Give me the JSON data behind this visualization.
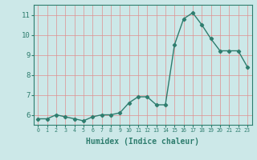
{
  "x": [
    0,
    1,
    2,
    3,
    4,
    5,
    6,
    7,
    8,
    9,
    10,
    11,
    12,
    13,
    14,
    15,
    16,
    17,
    18,
    19,
    20,
    21,
    22,
    23
  ],
  "y": [
    5.8,
    5.8,
    6.0,
    5.9,
    5.8,
    5.7,
    5.9,
    6.0,
    6.0,
    6.1,
    6.6,
    6.9,
    6.9,
    6.5,
    6.5,
    9.5,
    10.8,
    11.1,
    10.5,
    9.8,
    9.2,
    9.2,
    9.2,
    8.4
  ],
  "xlabel": "Humidex (Indice chaleur)",
  "xlim": [
    -0.5,
    23.5
  ],
  "ylim": [
    5.5,
    11.5
  ],
  "yticks": [
    6,
    7,
    8,
    9,
    10,
    11
  ],
  "xticks": [
    0,
    1,
    2,
    3,
    4,
    5,
    6,
    7,
    8,
    9,
    10,
    11,
    12,
    13,
    14,
    15,
    16,
    17,
    18,
    19,
    20,
    21,
    22,
    23
  ],
  "xtick_labels": [
    "0",
    "1",
    "2",
    "3",
    "4",
    "5",
    "6",
    "7",
    "8",
    "9",
    "10",
    "11",
    "12",
    "13",
    "14",
    "15",
    "16",
    "17",
    "18",
    "19",
    "20",
    "21",
    "22",
    "23"
  ],
  "line_color": "#2e7d6e",
  "bg_color": "#cce8e8",
  "grid_color": "#e09090",
  "marker": "D",
  "marker_size": 2.2,
  "linewidth": 1.0,
  "xlabel_fontsize": 7.0,
  "ytick_fontsize": 6.5,
  "xtick_fontsize": 4.8
}
